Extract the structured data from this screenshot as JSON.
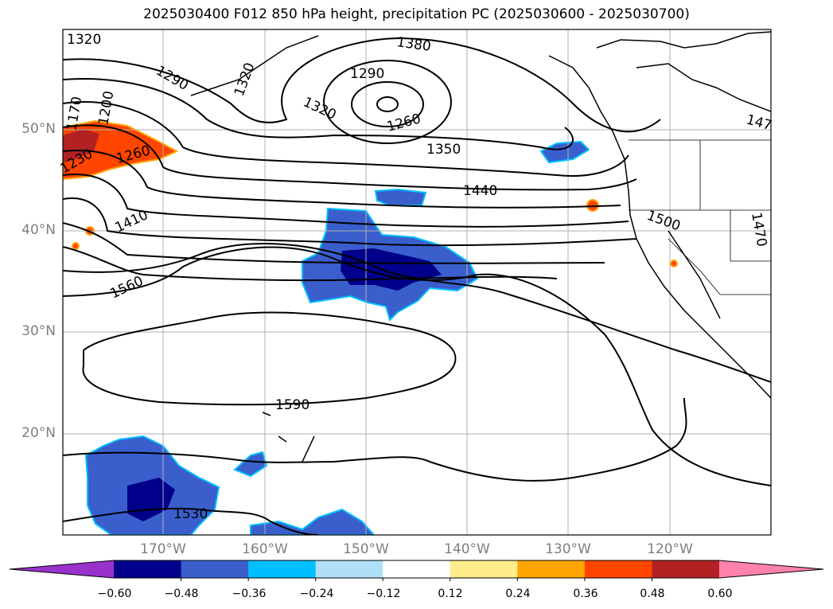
{
  "title": "2025030400 F012 850 hPa height, precipitation PC (2025030600 - 2025030700)",
  "lat_labels": [
    "50°N",
    "40°N",
    "30°N",
    "20°N"
  ],
  "lon_labels": [
    "170°W",
    "160°W",
    "150°W",
    "140°W",
    "130°W",
    "120°W"
  ],
  "contour_labels": [
    "1320",
    "1290",
    "1380",
    "1290",
    "1320",
    "1260",
    "1200",
    "1170",
    "1230",
    "1260",
    "1350",
    "1440",
    "1410",
    "1560",
    "1500",
    "1470",
    "1590",
    "1530",
    "147",
    "1320"
  ],
  "colorbar": {
    "ticks": [
      "−0.60",
      "−0.48",
      "−0.36",
      "−0.24",
      "−0.12",
      "0.12",
      "0.24",
      "0.36",
      "0.48",
      "0.60"
    ],
    "colors": [
      "#9932cc",
      "#00008b",
      "#3a5fcd",
      "#00bfff",
      "#b0e0f8",
      "#ffffff",
      "#ffec8b",
      "#ffa500",
      "#ff4500",
      "#b22222",
      "#ff82ab"
    ]
  }
}
